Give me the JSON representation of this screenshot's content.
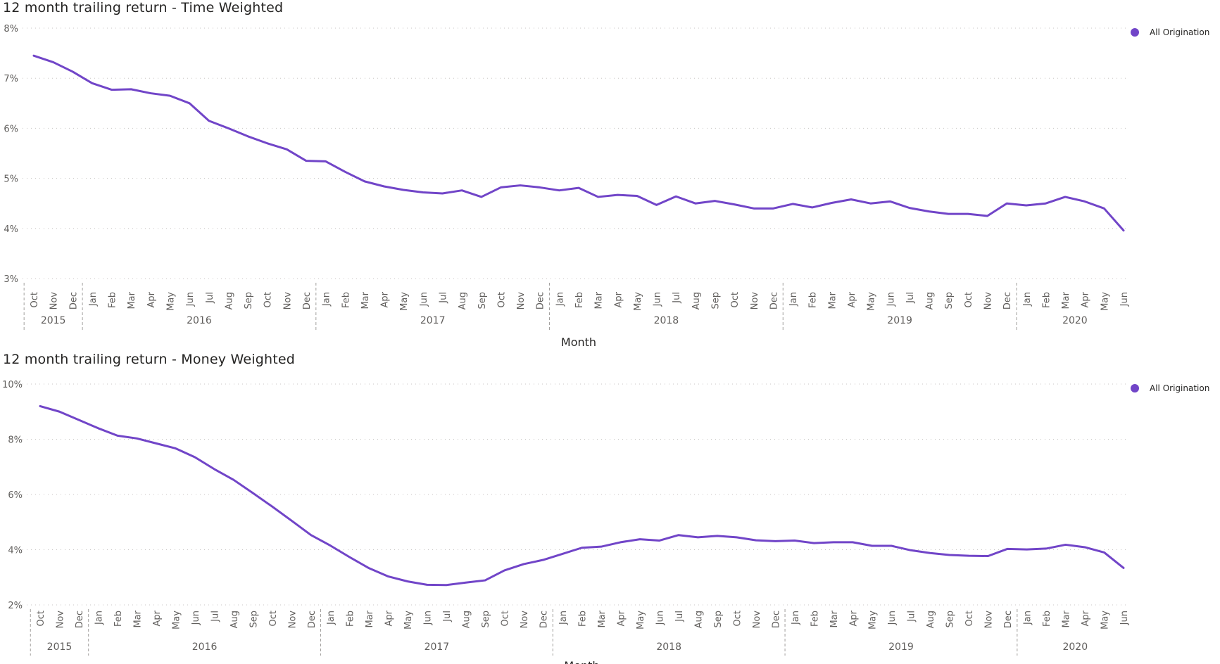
{
  "chart_data": [
    {
      "type": "line",
      "title": "12 month trailing return - Time Weighted",
      "xlabel": "Month",
      "ylabel": "",
      "ylim": [
        0.03,
        0.08
      ],
      "yticks": [
        "3%",
        "4%",
        "5%",
        "6%",
        "7%",
        "8%"
      ],
      "grid": true,
      "legend_position": "top-right",
      "months": [
        "Oct",
        "Nov",
        "Dec",
        "Jan",
        "Feb",
        "Mar",
        "Apr",
        "May",
        "Jun",
        "Jul",
        "Aug",
        "Sep",
        "Oct",
        "Nov",
        "Dec",
        "Jan",
        "Feb",
        "Mar",
        "Apr",
        "May",
        "Jun",
        "Jul",
        "Aug",
        "Sep",
        "Oct",
        "Nov",
        "Dec",
        "Jan",
        "Feb",
        "Mar",
        "Apr",
        "May",
        "Jun",
        "Jul",
        "Aug",
        "Sep",
        "Oct",
        "Nov",
        "Dec",
        "Jan",
        "Feb",
        "Mar",
        "Apr",
        "May",
        "Jun",
        "Jul",
        "Aug",
        "Sep",
        "Oct",
        "Nov",
        "Dec",
        "Jan",
        "Feb",
        "Mar",
        "Apr",
        "May",
        "Jun"
      ],
      "years": [
        {
          "label": "2015",
          "count": 3
        },
        {
          "label": "2016",
          "count": 12
        },
        {
          "label": "2017",
          "count": 12
        },
        {
          "label": "2018",
          "count": 12
        },
        {
          "label": "2019",
          "count": 12
        },
        {
          "label": "2020",
          "count": 6
        }
      ],
      "series": [
        {
          "name": "All Origination",
          "color": "#7145c8",
          "values": [
            0.0745,
            0.0732,
            0.0713,
            0.069,
            0.0677,
            0.0678,
            0.067,
            0.0665,
            0.065,
            0.0615,
            0.06,
            0.0584,
            0.057,
            0.0558,
            0.0535,
            0.0534,
            0.0513,
            0.0494,
            0.0484,
            0.0477,
            0.0472,
            0.047,
            0.0476,
            0.0463,
            0.0482,
            0.0486,
            0.0482,
            0.0476,
            0.0481,
            0.0463,
            0.0467,
            0.0465,
            0.0447,
            0.0464,
            0.045,
            0.0455,
            0.0448,
            0.044,
            0.044,
            0.0449,
            0.0442,
            0.0451,
            0.0458,
            0.045,
            0.0454,
            0.0441,
            0.0434,
            0.0429,
            0.0429,
            0.0425,
            0.045,
            0.0446,
            0.045,
            0.0463,
            0.0454,
            0.044,
            0.0396
          ]
        }
      ]
    },
    {
      "type": "line",
      "title": "12 month trailing return - Money Weighted",
      "xlabel": "Month",
      "ylabel": "",
      "ylim": [
        0.02,
        0.1
      ],
      "yticks": [
        "2%",
        "4%",
        "6%",
        "8%",
        "10%"
      ],
      "grid": true,
      "legend_position": "top-right",
      "months": [
        "Oct",
        "Nov",
        "Dec",
        "Jan",
        "Feb",
        "Mar",
        "Apr",
        "May",
        "Jun",
        "Jul",
        "Aug",
        "Sep",
        "Oct",
        "Nov",
        "Dec",
        "Jan",
        "Feb",
        "Mar",
        "Apr",
        "May",
        "Jun",
        "Jul",
        "Aug",
        "Sep",
        "Oct",
        "Nov",
        "Dec",
        "Jan",
        "Feb",
        "Mar",
        "Apr",
        "May",
        "Jun",
        "Jul",
        "Aug",
        "Sep",
        "Oct",
        "Nov",
        "Dec",
        "Jan",
        "Feb",
        "Mar",
        "Apr",
        "May",
        "Jun",
        "Jul",
        "Aug",
        "Sep",
        "Oct",
        "Nov",
        "Dec",
        "Jan",
        "Feb",
        "Mar",
        "Apr",
        "May",
        "Jun"
      ],
      "years": [
        {
          "label": "2015",
          "count": 3
        },
        {
          "label": "2016",
          "count": 12
        },
        {
          "label": "2017",
          "count": 12
        },
        {
          "label": "2018",
          "count": 12
        },
        {
          "label": "2019",
          "count": 12
        },
        {
          "label": "2020",
          "count": 6
        }
      ],
      "series": [
        {
          "name": "All Origination",
          "color": "#7145c8",
          "values": [
            0.092,
            0.09,
            0.087,
            0.084,
            0.0813,
            0.0803,
            0.0785,
            0.0767,
            0.0735,
            0.0692,
            0.0653,
            0.0605,
            0.0556,
            0.0505,
            0.0453,
            0.0415,
            0.0373,
            0.0333,
            0.0303,
            0.0285,
            0.0273,
            0.0272,
            0.0281,
            0.0289,
            0.0325,
            0.0348,
            0.0363,
            0.0385,
            0.0407,
            0.0411,
            0.0427,
            0.0438,
            0.0433,
            0.0453,
            0.0445,
            0.045,
            0.0445,
            0.0434,
            0.0431,
            0.0433,
            0.0424,
            0.0427,
            0.0427,
            0.0414,
            0.0414,
            0.0398,
            0.0388,
            0.0381,
            0.0378,
            0.0377,
            0.0403,
            0.0401,
            0.0404,
            0.0418,
            0.0409,
            0.039,
            0.0334
          ]
        }
      ]
    }
  ]
}
